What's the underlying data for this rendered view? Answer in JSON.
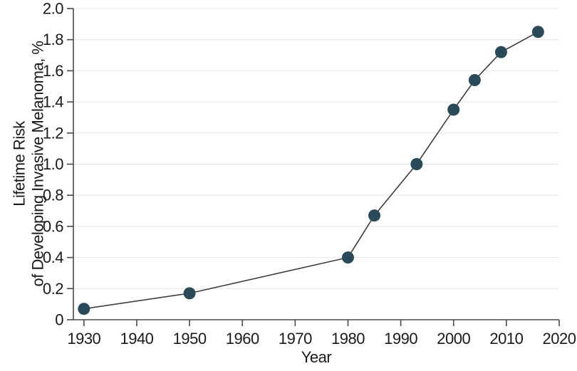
{
  "chart_data": {
    "type": "line",
    "title": "",
    "xlabel": "Year",
    "ylabel": "Lifetime Risk of Developing Invasive Melanoma, %",
    "ylabel_lines": [
      "Lifetime Risk",
      "of Developing Invasive Melanoma, %"
    ],
    "series": [
      {
        "name": "Lifetime risk of developing invasive melanoma",
        "x": [
          1930,
          1950,
          1980,
          1985,
          1993,
          2000,
          2004,
          2009,
          2016
        ],
        "y": [
          0.07,
          0.17,
          0.4,
          0.67,
          1.0,
          1.35,
          1.54,
          1.72,
          1.85
        ]
      }
    ],
    "xlim": [
      1928,
      2020
    ],
    "ylim": [
      0,
      2.0
    ],
    "x_ticks": [
      1930,
      1940,
      1950,
      1960,
      1970,
      1980,
      1990,
      2000,
      2010,
      2020
    ],
    "y_ticks": [
      0,
      0.2,
      0.4,
      0.6,
      0.8,
      1.0,
      1.2,
      1.4,
      1.6,
      1.8,
      2.0
    ],
    "y_tick_labels": [
      "0",
      "0.2",
      "0.4",
      "0.6",
      "0.8",
      "1.0",
      "1.2",
      "1.4",
      "1.6",
      "1.8",
      "2.0"
    ],
    "grid": "horizontal",
    "legend": "none",
    "marker": "circle",
    "colors": {
      "point": "#2B4A59",
      "line": "#3D3D3D",
      "axis": "#4A4A4A",
      "grid": "#E4E4E4",
      "text": "#1A1A1A",
      "background": "#FFFFFF"
    }
  }
}
